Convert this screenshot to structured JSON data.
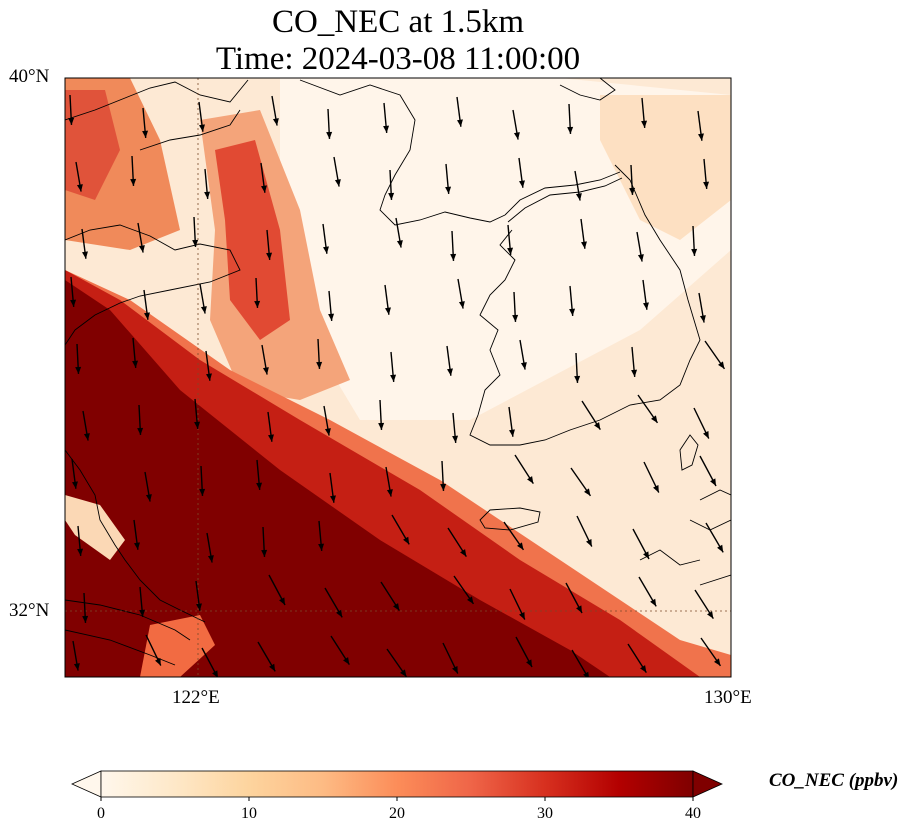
{
  "title": {
    "line1": "CO_NEC at 1.5km",
    "line2": "Time: 2024-03-08 11:00:00"
  },
  "map": {
    "projection": "lat-lon",
    "lon_range": [
      120,
      130
    ],
    "lat_range": [
      31,
      40
    ],
    "gridlines": {
      "lon": [
        122
      ],
      "lat": [
        32
      ]
    },
    "lat_labels": [
      {
        "value": 40,
        "text": "40°N"
      },
      {
        "value": 32,
        "text": "32°N"
      }
    ],
    "lon_labels": [
      {
        "value": 122,
        "text": "122°E"
      },
      {
        "value": 130,
        "text": "130°E"
      }
    ],
    "field": "CO_NEC",
    "features": [
      "coastlines",
      "wind-vectors",
      "gridlines"
    ],
    "wind_direction": "northerly to north-northwesterly"
  },
  "colorbar": {
    "label": "CO_NEC (ppbv)",
    "min": 0,
    "max": 40,
    "extend": "both",
    "ticks": [
      "0",
      "10",
      "20",
      "30",
      "40"
    ],
    "colors": [
      "#fff7ec",
      "#fee8c8",
      "#fdd49e",
      "#fdbb84",
      "#fc8d59",
      "#ef6548",
      "#d7301f",
      "#b30000",
      "#7f0000"
    ]
  }
}
